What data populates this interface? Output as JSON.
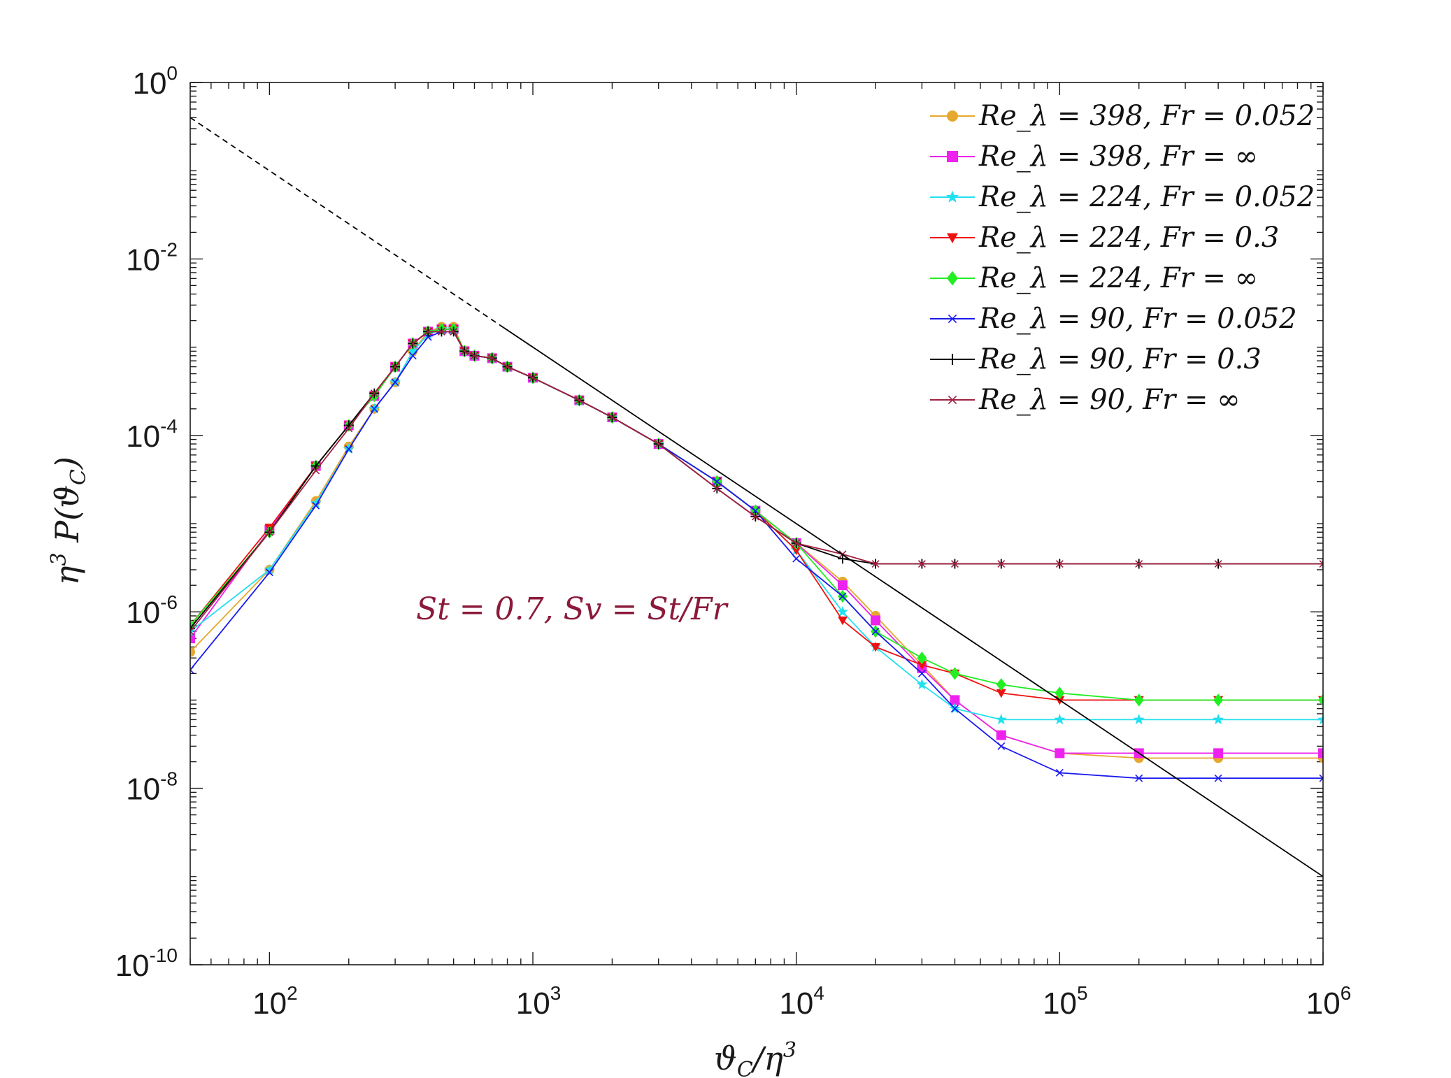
{
  "chart_data": {
    "type": "line",
    "xscale": "log",
    "yscale": "log",
    "xlim": [
      50,
      1000000
    ],
    "ylim": [
      1e-10,
      1
    ],
    "xlabel": "ϑ_C/η^3",
    "ylabel": "η^3 P(ϑ_C)",
    "x_tick_labels": [
      "10^2",
      "10^3",
      "10^4",
      "10^5",
      "10^6"
    ],
    "y_tick_labels": [
      "10^0",
      "10^-2",
      "10^-4",
      "10^-6",
      "10^-8",
      "10^-10"
    ],
    "annotation": {
      "text": "St = 0.7, Sv = St/Fr",
      "color": "#8b1a3a"
    },
    "legend_position": "top-right",
    "series": [
      {
        "name": "Re_λ = 398, Fr = 0.052",
        "color": "#e6a82e",
        "marker": "circle",
        "x": [
          50,
          100,
          150,
          200,
          250,
          300,
          350,
          400,
          450,
          500,
          550,
          600,
          700,
          800,
          1000,
          1500,
          2000,
          3000,
          5000,
          7000,
          10000,
          15000,
          20000,
          30000,
          40000,
          60000,
          100000,
          200000,
          400000,
          1000000
        ],
        "y": [
          3.5e-07,
          3e-06,
          1.8e-05,
          7.5e-05,
          0.0002,
          0.0004,
          0.0009,
          0.0015,
          0.0017,
          0.0017,
          0.0009,
          0.0008,
          0.00075,
          0.0006,
          0.00045,
          0.00025,
          0.00016,
          8e-05,
          3e-05,
          1.4e-05,
          6e-06,
          2.2e-06,
          9e-07,
          2.5e-07,
          1e-07,
          4e-08,
          2.5e-08,
          2.2e-08,
          2.2e-08,
          2.2e-08
        ]
      },
      {
        "name": "Re_λ = 398, Fr = ∞",
        "color": "#ee22ee",
        "marker": "square",
        "x": [
          50,
          100,
          150,
          200,
          250,
          300,
          350,
          400,
          450,
          500,
          550,
          600,
          700,
          800,
          1000,
          1500,
          2000,
          3000,
          5000,
          7000,
          10000,
          15000,
          20000,
          30000,
          40000,
          60000,
          100000,
          200000,
          400000,
          1000000
        ],
        "y": [
          5e-07,
          8.5e-06,
          4.5e-05,
          0.00013,
          0.00028,
          0.0006,
          0.0011,
          0.0015,
          0.0016,
          0.0016,
          0.0009,
          0.0008,
          0.00075,
          0.0006,
          0.00045,
          0.00025,
          0.00016,
          8e-05,
          3e-05,
          1.4e-05,
          6e-06,
          2e-06,
          8e-07,
          2.3e-07,
          1e-07,
          4e-08,
          2.5e-08,
          2.5e-08,
          2.5e-08,
          2.5e-08
        ]
      },
      {
        "name": "Re_λ = 224, Fr = 0.052",
        "color": "#22e0f0",
        "marker": "star",
        "x": [
          50,
          100,
          150,
          200,
          250,
          300,
          350,
          400,
          450,
          500,
          550,
          600,
          700,
          800,
          1000,
          1500,
          2000,
          3000,
          5000,
          7000,
          10000,
          15000,
          20000,
          30000,
          40000,
          60000,
          100000,
          200000,
          400000,
          1000000
        ],
        "y": [
          6e-07,
          3e-06,
          1.7e-05,
          7e-05,
          0.0002,
          0.0004,
          0.0009,
          0.0014,
          0.0016,
          0.0016,
          0.0009,
          0.0008,
          0.00075,
          0.0006,
          0.00045,
          0.00025,
          0.00016,
          8e-05,
          3e-05,
          1.4e-05,
          5e-06,
          1e-06,
          4e-07,
          1.5e-07,
          8e-08,
          6e-08,
          6e-08,
          6e-08,
          6e-08,
          6e-08
        ]
      },
      {
        "name": "Re_λ = 224, Fr = 0.3",
        "color": "#ee1111",
        "marker": "triangle-down",
        "x": [
          50,
          100,
          150,
          200,
          250,
          300,
          350,
          400,
          450,
          500,
          550,
          600,
          700,
          800,
          1000,
          1500,
          2000,
          3000,
          5000,
          7000,
          10000,
          15000,
          20000,
          30000,
          40000,
          60000,
          100000,
          200000,
          400000,
          1000000
        ],
        "y": [
          7e-07,
          9e-06,
          4.5e-05,
          0.00013,
          0.00028,
          0.0006,
          0.0011,
          0.0015,
          0.0016,
          0.0016,
          0.0009,
          0.0008,
          0.00075,
          0.0006,
          0.00045,
          0.00025,
          0.00016,
          8e-05,
          3e-05,
          1.4e-05,
          5e-06,
          8e-07,
          4e-07,
          2.5e-07,
          2e-07,
          1.2e-07,
          1e-07,
          1e-07,
          1e-07,
          1e-07
        ]
      },
      {
        "name": "Re_λ = 224, Fr = ∞",
        "color": "#22ee22",
        "marker": "diamond",
        "x": [
          50,
          100,
          150,
          200,
          250,
          300,
          350,
          400,
          450,
          500,
          550,
          600,
          700,
          800,
          1000,
          1500,
          2000,
          3000,
          5000,
          7000,
          10000,
          15000,
          20000,
          30000,
          40000,
          60000,
          100000,
          200000,
          400000,
          1000000
        ],
        "y": [
          7e-07,
          8e-06,
          4.5e-05,
          0.00013,
          0.00028,
          0.0006,
          0.0011,
          0.0015,
          0.0016,
          0.0016,
          0.0009,
          0.0008,
          0.00075,
          0.0006,
          0.00045,
          0.00025,
          0.00016,
          8e-05,
          3e-05,
          1.4e-05,
          6e-06,
          1.5e-06,
          6e-07,
          3e-07,
          2e-07,
          1.5e-07,
          1.2e-07,
          1e-07,
          1e-07,
          1e-07
        ]
      },
      {
        "name": "Re_λ = 90, Fr = 0.052",
        "color": "#1a1aee",
        "marker": "x",
        "x": [
          50,
          100,
          150,
          200,
          250,
          300,
          350,
          400,
          450,
          500,
          550,
          600,
          700,
          800,
          1000,
          1500,
          2000,
          3000,
          5000,
          7000,
          10000,
          15000,
          20000,
          30000,
          40000,
          60000,
          100000,
          200000,
          400000,
          1000000
        ],
        "y": [
          2.2e-07,
          2.8e-06,
          1.6e-05,
          7e-05,
          0.0002,
          0.0004,
          0.0008,
          0.0013,
          0.0015,
          0.0015,
          0.0009,
          0.0008,
          0.00075,
          0.0006,
          0.00045,
          0.00025,
          0.00016,
          8e-05,
          3e-05,
          1.4e-05,
          4e-06,
          1.5e-06,
          6e-07,
          2e-07,
          8e-08,
          3e-08,
          1.5e-08,
          1.3e-08,
          1.3e-08,
          1.3e-08
        ]
      },
      {
        "name": "Re_λ = 90, Fr = 0.3",
        "color": "#000000",
        "marker": "plus",
        "x": [
          50,
          100,
          150,
          200,
          250,
          300,
          350,
          400,
          450,
          500,
          550,
          600,
          700,
          800,
          1000,
          1500,
          2000,
          3000,
          5000,
          7000,
          10000,
          15000,
          20000,
          30000,
          40000,
          60000,
          100000,
          200000,
          400000,
          1000000
        ],
        "y": [
          6.5e-07,
          8e-06,
          4.5e-05,
          0.00013,
          0.0003,
          0.0006,
          0.0011,
          0.0015,
          0.0015,
          0.0015,
          0.0009,
          0.0008,
          0.00075,
          0.0006,
          0.00045,
          0.00025,
          0.00016,
          8e-05,
          2.5e-05,
          1.2e-05,
          6e-06,
          4e-06,
          3.5e-06,
          3.5e-06,
          3.5e-06,
          3.5e-06,
          3.5e-06,
          3.5e-06,
          3.5e-06,
          3.5e-06
        ]
      },
      {
        "name": "Re_λ = 90, Fr = ∞",
        "color": "#a02040",
        "marker": "x",
        "x": [
          50,
          100,
          150,
          200,
          250,
          300,
          350,
          400,
          450,
          500,
          550,
          600,
          700,
          800,
          1000,
          1500,
          2000,
          3000,
          5000,
          7000,
          10000,
          15000,
          20000,
          30000,
          40000,
          60000,
          100000,
          200000,
          400000,
          1000000
        ],
        "y": [
          6e-07,
          8e-06,
          4e-05,
          0.00012,
          0.0003,
          0.0006,
          0.0011,
          0.0015,
          0.0015,
          0.0015,
          0.0009,
          0.0008,
          0.00075,
          0.0006,
          0.00045,
          0.00025,
          0.00016,
          8e-05,
          2.5e-05,
          1.2e-05,
          6e-06,
          4.5e-06,
          3.5e-06,
          3.5e-06,
          3.5e-06,
          3.5e-06,
          3.5e-06,
          3.5e-06,
          3.5e-06,
          3.5e-06
        ]
      }
    ],
    "reference_line": {
      "style": "dashed-then-solid",
      "color": "#000000",
      "x": [
        50,
        1000000
      ],
      "y": [
        0.4,
        1e-09
      ],
      "dash_until_x": 750
    }
  }
}
